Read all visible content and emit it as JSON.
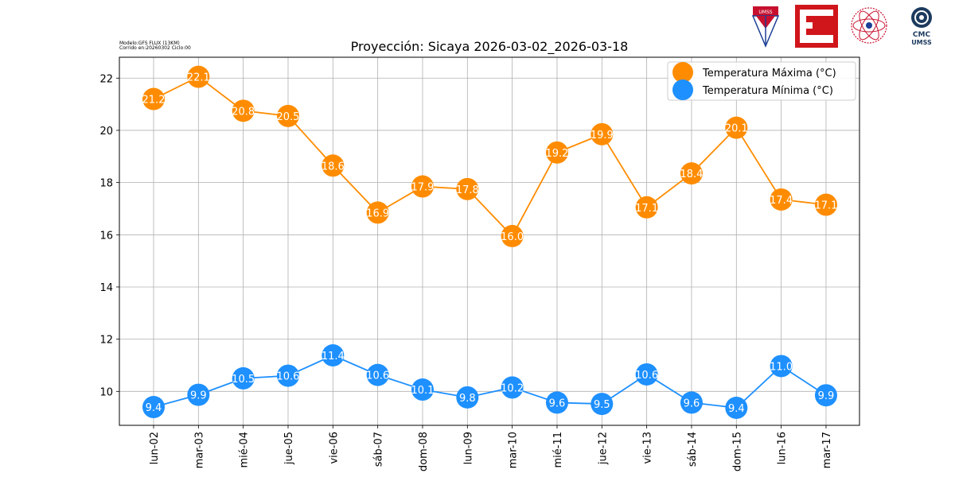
{
  "meta": {
    "model": "Modelo:GFS FLUX (13KM)",
    "run": "Corrido en:20260302 Ciclo:00"
  },
  "logos": {
    "umss": "UMSS",
    "cmc_line1": "CMC",
    "cmc_line2": "UMSS"
  },
  "colors": {
    "max": "#ff8c00",
    "min": "#1e90ff",
    "grid": "#b0b0b0"
  },
  "chart_data": {
    "type": "line",
    "title": "Proyección: Sicaya 2026-03-02_2026-03-18",
    "xlabel": "",
    "ylabel": "",
    "categories": [
      "lun-02",
      "mar-03",
      "mié-04",
      "jue-05",
      "vie-06",
      "sáb-07",
      "dom-08",
      "lun-09",
      "mar-10",
      "mié-11",
      "jue-12",
      "vie-13",
      "sáb-14",
      "dom-15",
      "lun-16",
      "mar-17"
    ],
    "ylim": [
      8.7,
      22.8
    ],
    "yticks": [
      10,
      12,
      14,
      16,
      18,
      20,
      22
    ],
    "grid": true,
    "legend_position": "top-right",
    "series": [
      {
        "name": "Temperatura Máxima  (°C)",
        "color": "#ff8c00",
        "values": [
          21.2,
          22.1,
          20.8,
          20.5,
          18.6,
          16.9,
          17.9,
          17.8,
          16.0,
          19.2,
          19.9,
          17.1,
          18.4,
          20.1,
          17.4,
          17.1
        ],
        "plotted": [
          21.2,
          22.05,
          20.75,
          20.55,
          18.65,
          16.85,
          17.85,
          17.75,
          15.95,
          19.15,
          19.85,
          17.05,
          18.35,
          20.1,
          17.35,
          17.15
        ]
      },
      {
        "name": "Temperatura Mínima  (°C)",
        "color": "#1e90ff",
        "values": [
          9.4,
          9.9,
          10.5,
          10.6,
          11.4,
          10.6,
          10.1,
          9.8,
          10.2,
          9.6,
          9.5,
          10.6,
          9.6,
          9.4,
          11.0,
          9.9
        ],
        "plotted": [
          9.4,
          9.87,
          10.5,
          10.6,
          11.38,
          10.63,
          10.07,
          9.77,
          10.15,
          9.57,
          9.52,
          10.65,
          9.57,
          9.37,
          10.97,
          9.85
        ]
      }
    ]
  }
}
